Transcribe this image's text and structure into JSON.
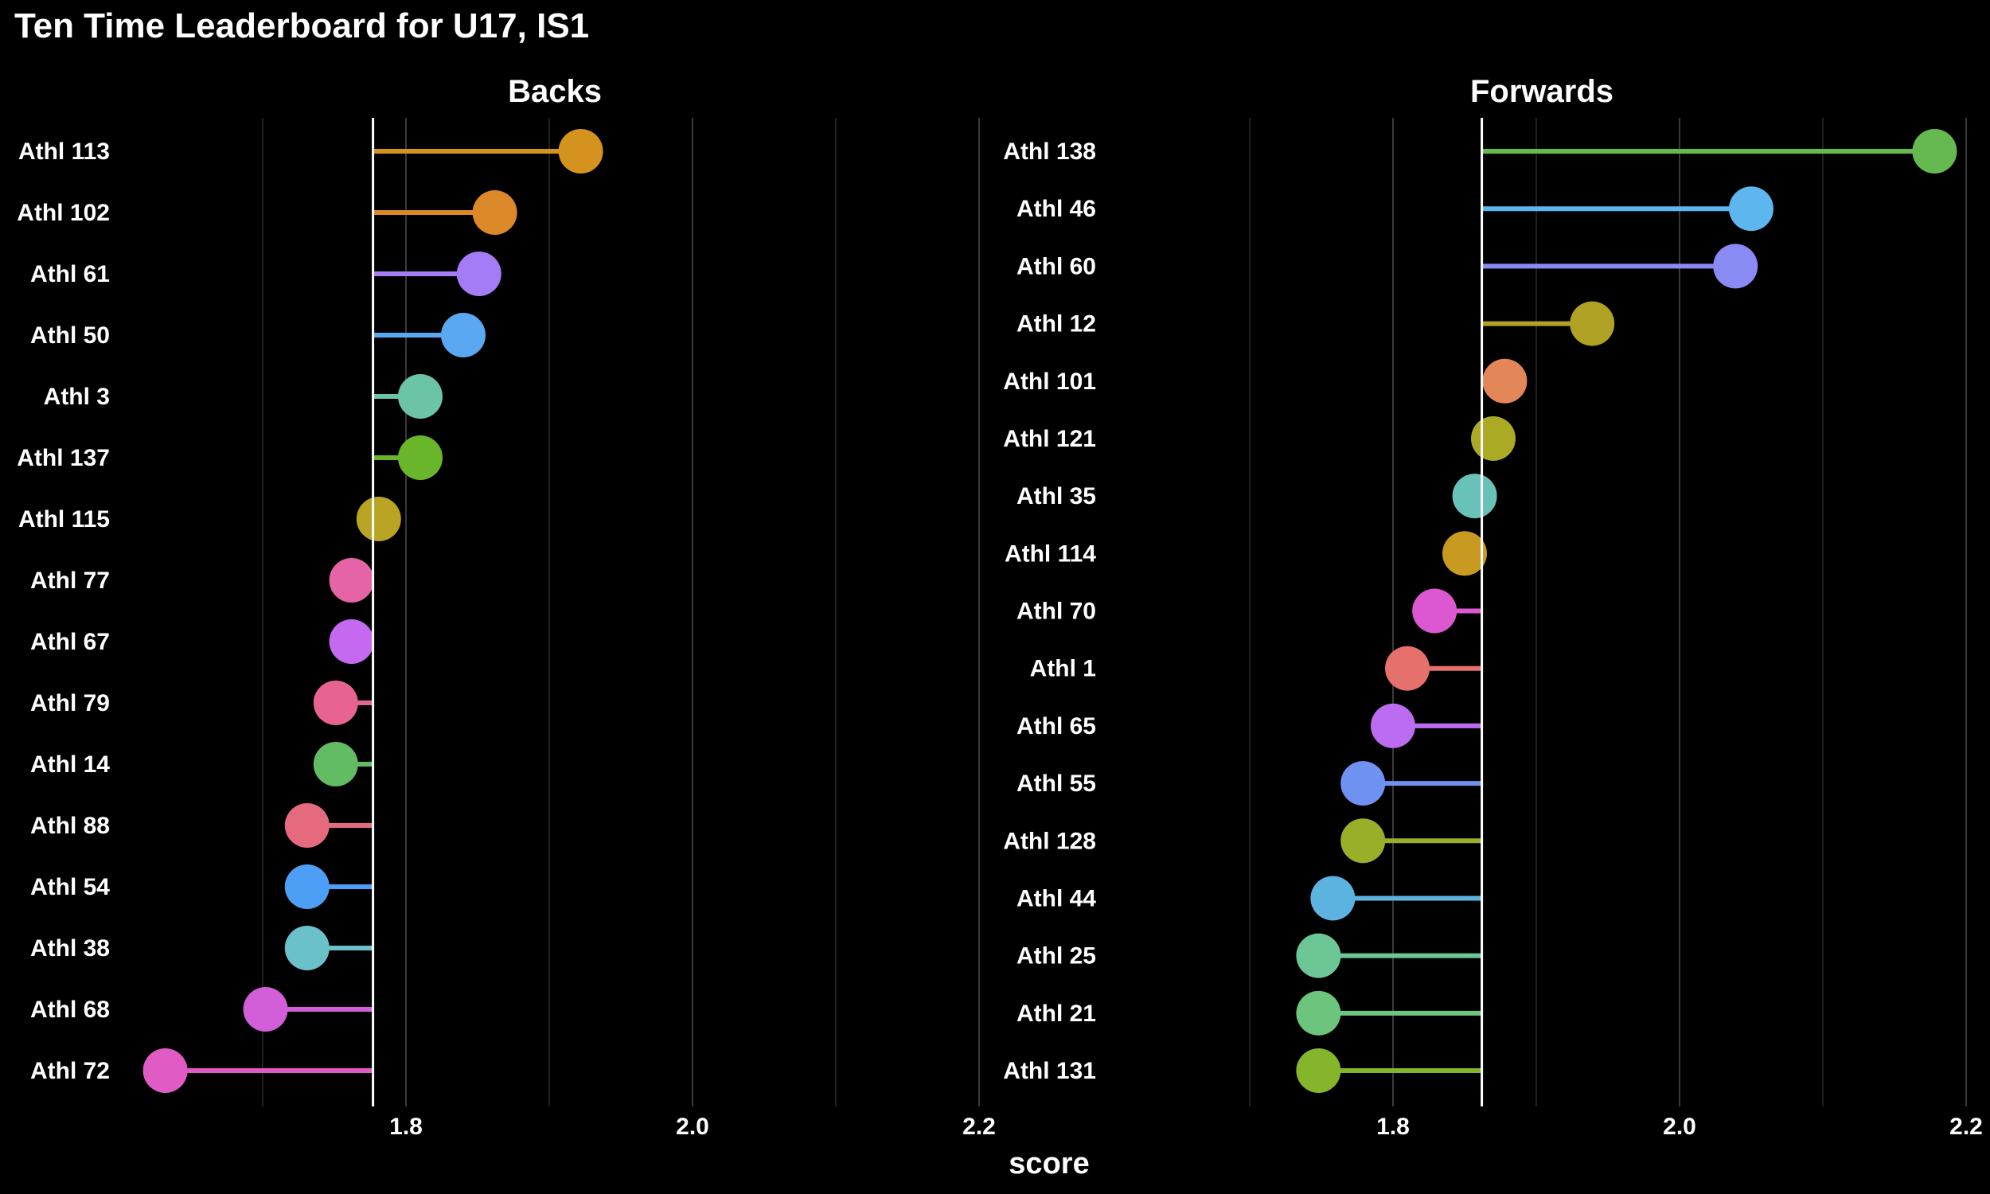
{
  "title": "Ten Time Leaderboard for U17, IS1",
  "xlabel": "score",
  "chart_data": [
    {
      "type": "lollipop",
      "title": "Backs",
      "reference": 1.777,
      "xlim": [
        1.6,
        2.2
      ],
      "ticks": [
        1.8,
        2.0,
        2.2
      ],
      "tick_labels": [
        "1.8",
        "2.0",
        "2.2"
      ],
      "minor_ticks": [
        1.7,
        1.9,
        2.1
      ],
      "athletes": [
        {
          "name": "Athl 113",
          "value": 1.922,
          "color": "#D4921E"
        },
        {
          "name": "Athl 102",
          "value": 1.862,
          "color": "#DB8828"
        },
        {
          "name": "Athl 61",
          "value": 1.851,
          "color": "#A47CF5"
        },
        {
          "name": "Athl 50",
          "value": 1.84,
          "color": "#5BA8F2"
        },
        {
          "name": "Athl 3",
          "value": 1.81,
          "color": "#6CC4A7"
        },
        {
          "name": "Athl 137",
          "value": 1.81,
          "color": "#6AB62B"
        },
        {
          "name": "Athl 115",
          "value": 1.781,
          "color": "#B9A424"
        },
        {
          "name": "Athl 77",
          "value": 1.762,
          "color": "#E464A7"
        },
        {
          "name": "Athl 67",
          "value": 1.762,
          "color": "#C56AF0"
        },
        {
          "name": "Athl 79",
          "value": 1.751,
          "color": "#E76492"
        },
        {
          "name": "Athl 14",
          "value": 1.751,
          "color": "#62BC63"
        },
        {
          "name": "Athl 88",
          "value": 1.731,
          "color": "#E56A7E"
        },
        {
          "name": "Athl 54",
          "value": 1.731,
          "color": "#4D9FF5"
        },
        {
          "name": "Athl 38",
          "value": 1.731,
          "color": "#6BC1C9"
        },
        {
          "name": "Athl 68",
          "value": 1.702,
          "color": "#D35FD8"
        },
        {
          "name": "Athl 72",
          "value": 1.632,
          "color": "#E05BC4"
        }
      ]
    },
    {
      "type": "lollipop",
      "title": "Forwards",
      "reference": 1.862,
      "xlim": [
        1.6,
        2.2
      ],
      "ticks": [
        1.8,
        2.0,
        2.2
      ],
      "tick_labels": [
        "1.8",
        "2.0",
        "2.2"
      ],
      "minor_ticks": [
        1.7,
        1.9,
        2.1
      ],
      "athletes": [
        {
          "name": "Athl 138",
          "value": 2.178,
          "color": "#65B94E"
        },
        {
          "name": "Athl 46",
          "value": 2.05,
          "color": "#5EB6EE"
        },
        {
          "name": "Athl 60",
          "value": 2.039,
          "color": "#8A8AF5"
        },
        {
          "name": "Athl 12",
          "value": 1.939,
          "color": "#B0A224"
        },
        {
          "name": "Athl 101",
          "value": 1.878,
          "color": "#E48758"
        },
        {
          "name": "Athl 121",
          "value": 1.87,
          "color": "#AAAA24"
        },
        {
          "name": "Athl 35",
          "value": 1.857,
          "color": "#69C2B8"
        },
        {
          "name": "Athl 114",
          "value": 1.85,
          "color": "#C99A22"
        },
        {
          "name": "Athl 70",
          "value": 1.829,
          "color": "#DB58D0"
        },
        {
          "name": "Athl 1",
          "value": 1.81,
          "color": "#E6706B"
        },
        {
          "name": "Athl 65",
          "value": 1.8,
          "color": "#BB6CF1"
        },
        {
          "name": "Athl 55",
          "value": 1.779,
          "color": "#6E91F2"
        },
        {
          "name": "Athl 128",
          "value": 1.779,
          "color": "#99AE29"
        },
        {
          "name": "Athl 44",
          "value": 1.758,
          "color": "#5DB3DF"
        },
        {
          "name": "Athl 25",
          "value": 1.748,
          "color": "#6CC696"
        },
        {
          "name": "Athl 21",
          "value": 1.748,
          "color": "#6DC47C"
        },
        {
          "name": "Athl 131",
          "value": 1.748,
          "color": "#84B52A"
        }
      ]
    }
  ]
}
